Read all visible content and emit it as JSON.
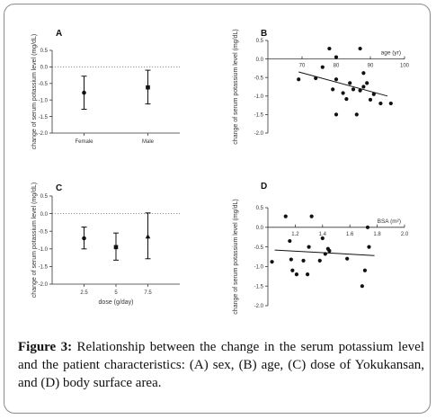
{
  "panels": [
    {
      "id": "A",
      "type": "errorbar",
      "ylabel": "change of serum potassium level (mg/dL)",
      "xlabel": "",
      "categories": [
        "Female",
        "Male"
      ],
      "yticks": [
        "0.5",
        "0.0",
        "-0.5",
        "-1.0",
        "-1.5",
        "-2.0"
      ],
      "ylim": [
        -2.0,
        0.5
      ],
      "reference_line": 0.0,
      "points": [
        {
          "category": "Female",
          "mean": -0.78,
          "lower": -1.28,
          "upper": -0.28,
          "marker": "circle"
        },
        {
          "category": "Male",
          "mean": -0.62,
          "lower": -1.12,
          "upper": -0.1,
          "marker": "square"
        }
      ]
    },
    {
      "id": "B",
      "type": "scatter",
      "ylabel": "change of serum potassium level (mg/dL)",
      "xlabel": "age (yr)",
      "xticks": [
        "70",
        "80",
        "90",
        "100"
      ],
      "yticks": [
        "0.5",
        "0.0",
        "-0.5",
        "-1.0",
        "-1.5",
        "-2.0"
      ],
      "xlim": [
        60,
        100
      ],
      "ylim": [
        -2.0,
        0.5
      ],
      "points": [
        {
          "x": 69,
          "y": -0.55
        },
        {
          "x": 74,
          "y": -0.52
        },
        {
          "x": 76,
          "y": -0.22
        },
        {
          "x": 78,
          "y": 0.28
        },
        {
          "x": 79,
          "y": -0.82
        },
        {
          "x": 80,
          "y": -0.55
        },
        {
          "x": 80,
          "y": 0.05
        },
        {
          "x": 80,
          "y": -1.5
        },
        {
          "x": 82,
          "y": -0.92
        },
        {
          "x": 83,
          "y": -1.08
        },
        {
          "x": 84,
          "y": -0.65
        },
        {
          "x": 85,
          "y": -0.82
        },
        {
          "x": 86,
          "y": -1.5
        },
        {
          "x": 87,
          "y": 0.28
        },
        {
          "x": 87,
          "y": -0.85
        },
        {
          "x": 88,
          "y": -0.75
        },
        {
          "x": 88,
          "y": -0.38
        },
        {
          "x": 89,
          "y": -0.65
        },
        {
          "x": 90,
          "y": -1.1
        },
        {
          "x": 91,
          "y": -0.95
        },
        {
          "x": 93,
          "y": -1.2
        },
        {
          "x": 96,
          "y": -1.2
        }
      ],
      "trend": {
        "x1": 69,
        "y1": -0.35,
        "x2": 95,
        "y2": -1.0
      }
    },
    {
      "id": "C",
      "type": "errorbar",
      "ylabel": "change of serum potassium level (mg/dL)",
      "xlabel": "dose (g/day)",
      "categories": [
        "2.5",
        "5",
        "7.5"
      ],
      "yticks": [
        "0.5",
        "0.0",
        "-0.5",
        "-1.0",
        "-1.5",
        "-2.0"
      ],
      "ylim": [
        -2.0,
        0.5
      ],
      "reference_line": 0.0,
      "points": [
        {
          "category": "2.5",
          "mean": -0.7,
          "lower": -1.0,
          "upper": -0.38,
          "marker": "circle"
        },
        {
          "category": "5",
          "mean": -0.95,
          "lower": -1.32,
          "upper": -0.55,
          "marker": "square"
        },
        {
          "category": "7.5",
          "mean": -0.65,
          "lower": -1.28,
          "upper": 0.02,
          "marker": "triangle"
        }
      ]
    },
    {
      "id": "D",
      "type": "scatter",
      "ylabel": "change of serum potassium level (mg/dL)",
      "xlabel": "BSA (m²)",
      "xticks": [
        "1.2",
        "1.4",
        "1.6",
        "1.8",
        "2.0"
      ],
      "yticks": [
        "0.5",
        "0.0",
        "-0.5",
        "-1.0",
        "-1.5",
        "-2.0"
      ],
      "xlim": [
        1.0,
        2.0
      ],
      "ylim": [
        -2.0,
        0.5
      ],
      "points": [
        {
          "x": 1.03,
          "y": -0.88
        },
        {
          "x": 1.13,
          "y": 0.28
        },
        {
          "x": 1.16,
          "y": -0.35
        },
        {
          "x": 1.17,
          "y": -0.82
        },
        {
          "x": 1.18,
          "y": -1.1
        },
        {
          "x": 1.21,
          "y": -1.2
        },
        {
          "x": 1.26,
          "y": -0.85
        },
        {
          "x": 1.29,
          "y": -1.2
        },
        {
          "x": 1.3,
          "y": -0.5
        },
        {
          "x": 1.32,
          "y": 0.28
        },
        {
          "x": 1.38,
          "y": -0.85
        },
        {
          "x": 1.4,
          "y": -0.28
        },
        {
          "x": 1.42,
          "y": -0.68
        },
        {
          "x": 1.44,
          "y": -0.55
        },
        {
          "x": 1.45,
          "y": -0.6
        },
        {
          "x": 1.58,
          "y": -0.8
        },
        {
          "x": 1.69,
          "y": -1.5
        },
        {
          "x": 1.71,
          "y": -1.1
        },
        {
          "x": 1.73,
          "y": 0.0
        },
        {
          "x": 1.74,
          "y": -0.5
        }
      ],
      "trend": {
        "x1": 1.05,
        "y1": -0.58,
        "x2": 1.78,
        "y2": -0.72
      }
    }
  ],
  "caption": {
    "label": "Figure 3:",
    "text": " Relationship between the change in the serum potassium level and the patient characteristics: (A) sex, (B) age, (C) dose of Yokukansan, and (D) body surface area."
  }
}
